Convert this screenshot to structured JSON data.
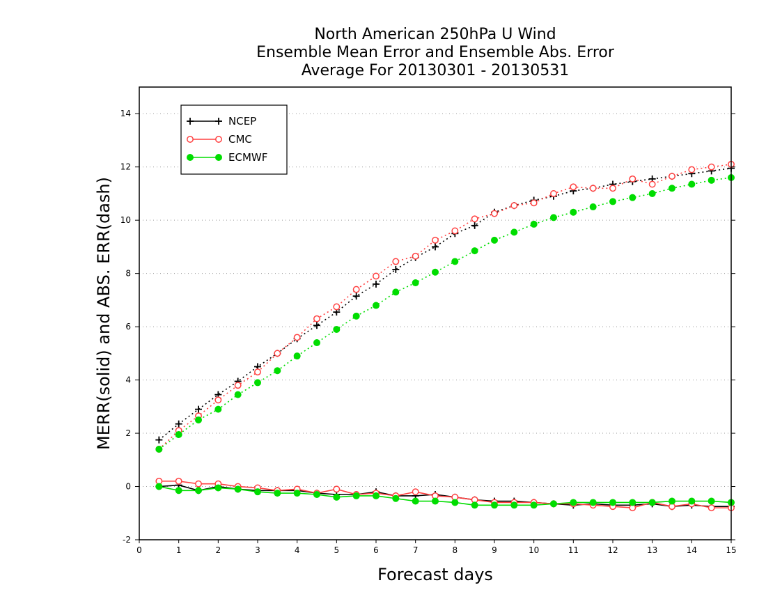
{
  "chart_data": {
    "type": "line",
    "title": "North American 250hPa U Wind",
    "subtitle": "Ensemble Mean Error and Ensemble Abs. Error",
    "period": "Average For 20130301 - 20130531",
    "xlabel": "Forecast days",
    "ylabel": "MERR(solid) and ABS. ERR(dash)",
    "xlim": [
      0,
      15
    ],
    "ylim": [
      -2,
      15
    ],
    "xticks": [
      0,
      1,
      2,
      3,
      4,
      5,
      6,
      7,
      8,
      9,
      10,
      11,
      12,
      13,
      14,
      15
    ],
    "yticks": [
      -2,
      0,
      2,
      4,
      6,
      8,
      10,
      12,
      14
    ],
    "grid": true,
    "legend_position": "top-left",
    "x": [
      0.5,
      1,
      1.5,
      2,
      2.5,
      3,
      3.5,
      4,
      4.5,
      5,
      5.5,
      6,
      6.5,
      7,
      7.5,
      8,
      8.5,
      9,
      9.5,
      10,
      10.5,
      11,
      11.5,
      12,
      12.5,
      13,
      13.5,
      14,
      14.5,
      15
    ],
    "series": [
      {
        "name": "NCEP",
        "color": "#000000",
        "marker": "plus",
        "abs_error": [
          1.75,
          2.35,
          2.9,
          3.45,
          3.95,
          4.5,
          5.0,
          5.55,
          6.05,
          6.55,
          7.15,
          7.6,
          8.15,
          8.6,
          9.0,
          9.5,
          9.8,
          10.3,
          10.55,
          10.75,
          10.9,
          11.1,
          11.2,
          11.35,
          11.45,
          11.55,
          11.65,
          11.75,
          11.85,
          11.95
        ],
        "mean_error": [
          0.0,
          0.05,
          -0.15,
          0.0,
          -0.1,
          -0.15,
          -0.15,
          -0.15,
          -0.25,
          -0.3,
          -0.3,
          -0.2,
          -0.35,
          -0.35,
          -0.3,
          -0.4,
          -0.5,
          -0.55,
          -0.55,
          -0.6,
          -0.65,
          -0.7,
          -0.65,
          -0.7,
          -0.7,
          -0.65,
          -0.75,
          -0.7,
          -0.75,
          -0.75
        ]
      },
      {
        "name": "CMC",
        "color": "#ff4040",
        "marker": "open-circle",
        "abs_error": [
          1.4,
          2.1,
          2.65,
          3.25,
          3.8,
          4.3,
          5.0,
          5.6,
          6.3,
          6.75,
          7.4,
          7.9,
          8.45,
          8.65,
          9.25,
          9.6,
          10.05,
          10.25,
          10.55,
          10.65,
          11.0,
          11.25,
          11.2,
          11.2,
          11.55,
          11.35,
          11.65,
          11.9,
          12.0,
          12.1
        ],
        "mean_error": [
          0.2,
          0.2,
          0.1,
          0.1,
          0.0,
          -0.05,
          -0.15,
          -0.1,
          -0.25,
          -0.1,
          -0.3,
          -0.25,
          -0.35,
          -0.2,
          -0.35,
          -0.4,
          -0.5,
          -0.6,
          -0.6,
          -0.6,
          -0.65,
          -0.65,
          -0.7,
          -0.75,
          -0.8,
          -0.6,
          -0.75,
          -0.65,
          -0.8,
          -0.8
        ]
      },
      {
        "name": "ECMWF",
        "color": "#00dd00",
        "marker": "filled-circle",
        "abs_error": [
          1.4,
          1.95,
          2.5,
          2.9,
          3.45,
          3.9,
          4.35,
          4.9,
          5.4,
          5.9,
          6.4,
          6.8,
          7.3,
          7.65,
          8.05,
          8.45,
          8.85,
          9.25,
          9.55,
          9.85,
          10.1,
          10.3,
          10.5,
          10.7,
          10.85,
          11.0,
          11.2,
          11.35,
          11.5,
          11.6
        ],
        "mean_error": [
          0.0,
          -0.15,
          -0.15,
          -0.05,
          -0.1,
          -0.2,
          -0.25,
          -0.25,
          -0.3,
          -0.4,
          -0.35,
          -0.35,
          -0.45,
          -0.55,
          -0.55,
          -0.6,
          -0.7,
          -0.7,
          -0.7,
          -0.7,
          -0.65,
          -0.6,
          -0.6,
          -0.6,
          -0.6,
          -0.6,
          -0.55,
          -0.55,
          -0.55,
          -0.6
        ]
      }
    ]
  }
}
